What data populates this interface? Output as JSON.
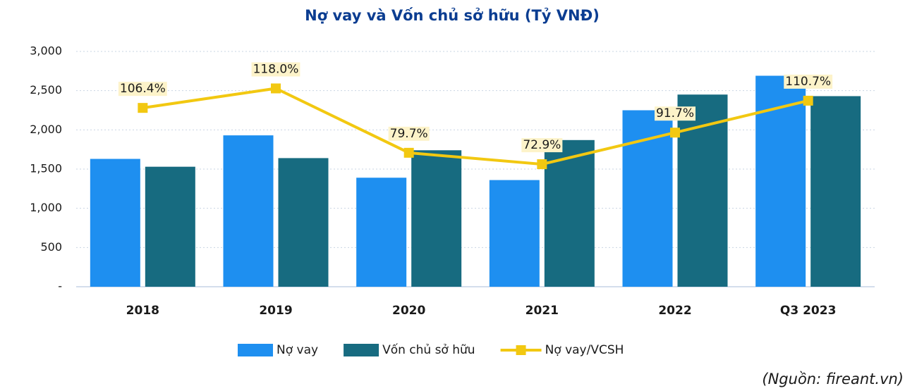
{
  "chart_data": {
    "type": "bar_line",
    "title": "Nợ vay và Vốn chủ sở hữu (Tỷ VNĐ)",
    "categories": [
      "2018",
      "2019",
      "2020",
      "2021",
      "2022",
      "Q3 2023"
    ],
    "series": [
      {
        "name": "Nợ vay",
        "type": "bar",
        "color": "#1e8ff0",
        "values": [
          1630,
          1930,
          1390,
          1360,
          2250,
          2690
        ]
      },
      {
        "name": "Vốn chủ sở hữu",
        "type": "bar",
        "color": "#176b80",
        "values": [
          1530,
          1640,
          1740,
          1870,
          2450,
          2430
        ]
      },
      {
        "name": "Nợ vay/VCSH",
        "type": "line",
        "axis": "y2",
        "color": "#f2c811",
        "values": [
          106.4,
          118.0,
          79.7,
          72.9,
          91.7,
          110.7
        ],
        "value_labels": [
          "106.4%",
          "118.0%",
          "79.7%",
          "72.9%",
          "91.7%",
          "110.7%"
        ]
      }
    ],
    "ylim": [
      0,
      3000
    ],
    "yticks": [
      {
        "value": 0,
        "label": "-"
      },
      500,
      {
        "value": 1000,
        "label": "1,000"
      },
      {
        "value": 1500,
        "label": "1,500"
      },
      {
        "value": 2000,
        "label": "2,000"
      },
      {
        "value": 2500,
        "label": "2,500"
      },
      {
        "value": 3000,
        "label": "3,000"
      }
    ],
    "y2lim": [
      0,
      140
    ],
    "grid": true,
    "legend": "bottom",
    "source": "(Nguồn: fireant.vn)"
  }
}
